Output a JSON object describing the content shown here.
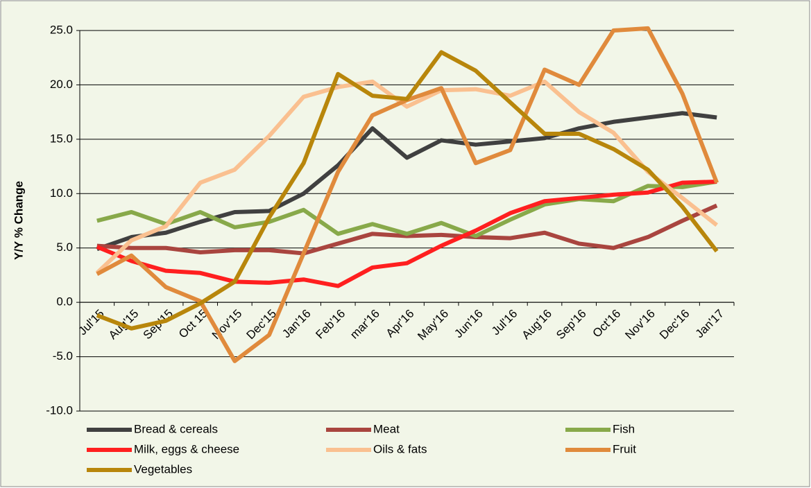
{
  "chart_data": {
    "type": "line",
    "y_label": "Y/Y % Change",
    "categories": [
      "Jul'15",
      "Aug'15",
      "Sep'15",
      "Oct 15",
      "Nov'15",
      "Dec'15",
      "Jan'16",
      "Feb'16",
      "mar'16",
      "Apr'16",
      "May'16",
      "Jun'16",
      "Jul'16",
      "Aug'16",
      "Sep'16",
      "Oct'16",
      "Nov'16",
      "Dec'16",
      "Jan'17"
    ],
    "ylim": [
      -10,
      25
    ],
    "yticks": [
      {
        "value": -10,
        "label": "-10.0"
      },
      {
        "value": -5,
        "label": "-5.0"
      },
      {
        "value": 0,
        "label": "0.0"
      },
      {
        "value": 5,
        "label": "5.0"
      },
      {
        "value": 10,
        "label": "10.0"
      },
      {
        "value": 15,
        "label": "15.0"
      },
      {
        "value": 20,
        "label": "20.0"
      },
      {
        "value": 25,
        "label": "25.0"
      }
    ],
    "grid": true,
    "legend": "bottom",
    "series": [
      {
        "name": "Bread & cereals",
        "color": "#404040",
        "values": [
          4.9,
          6.0,
          6.4,
          7.4,
          8.3,
          8.4,
          10.0,
          12.6,
          16.0,
          13.3,
          14.9,
          14.5,
          14.8,
          15.1,
          16.0,
          16.6,
          17.0,
          17.4,
          17.0
        ]
      },
      {
        "name": "Meat",
        "color": "#a9453f",
        "values": [
          5.2,
          5.0,
          5.0,
          4.6,
          4.8,
          4.8,
          4.5,
          5.4,
          6.3,
          6.1,
          6.2,
          6.0,
          5.9,
          6.4,
          5.4,
          5.0,
          6.0,
          7.5,
          8.9
        ]
      },
      {
        "name": "Fish",
        "color": "#88a94a",
        "values": [
          7.5,
          8.3,
          7.2,
          8.3,
          6.9,
          7.4,
          8.5,
          6.3,
          7.2,
          6.3,
          7.3,
          6.1,
          7.6,
          9.0,
          9.5,
          9.3,
          10.7,
          10.6,
          11.1
        ]
      },
      {
        "name": "Milk, eggs & cheese",
        "color": "#ff1f1f",
        "values": [
          5.1,
          3.8,
          2.9,
          2.7,
          1.9,
          1.8,
          2.1,
          1.5,
          3.2,
          3.6,
          5.2,
          6.6,
          8.2,
          9.3,
          9.6,
          9.9,
          10.1,
          11.0,
          11.1
        ]
      },
      {
        "name": "Oils & fats",
        "color": "#fac090",
        "values": [
          2.7,
          5.7,
          7.0,
          11.0,
          12.2,
          15.3,
          18.9,
          19.8,
          20.3,
          18.0,
          19.5,
          19.6,
          19.0,
          20.3,
          17.5,
          15.6,
          12.0,
          9.6,
          7.1
        ]
      },
      {
        "name": "Fruit",
        "color": "#e08a3c",
        "values": [
          2.6,
          4.3,
          1.4,
          0.1,
          -5.4,
          -3.0,
          4.5,
          12.0,
          17.2,
          18.6,
          19.7,
          12.8,
          14.0,
          21.4,
          20.0,
          25.0,
          25.2,
          19.2,
          11.0
        ]
      },
      {
        "name": "Vegetables",
        "color": "#b8860b",
        "values": [
          -1.2,
          -2.4,
          -1.7,
          -0.1,
          1.9,
          7.8,
          12.8,
          21.0,
          19.0,
          18.7,
          23.0,
          21.3,
          18.4,
          15.5,
          15.5,
          14.1,
          12.2,
          8.8,
          4.7
        ]
      }
    ]
  }
}
